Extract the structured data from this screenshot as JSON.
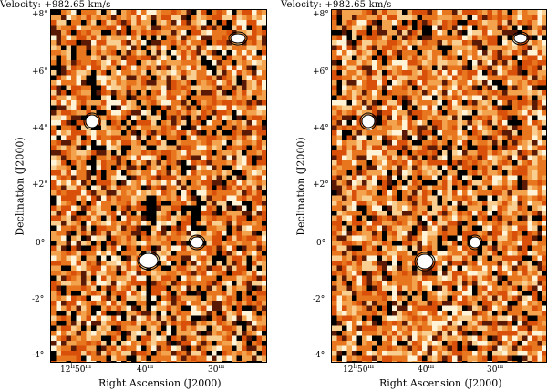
{
  "panels": [
    {
      "velocity_label": "Velocity: +982.65 km/s",
      "ylabel": "Declination (J2000)",
      "xlabel": "Right Ascension (J2000)",
      "dec_ticks": [
        "+8°",
        "+6°",
        "+4°",
        "+2°",
        "0°",
        "-2°",
        "-4°"
      ],
      "ra_ticks": [
        {
          "main": "12",
          "sup1": "h",
          "mid": "50",
          "sup2": "m"
        },
        {
          "main": "",
          "sup1": "",
          "mid": "40",
          "sup2": "m"
        },
        {
          "main": "",
          "sup1": "",
          "mid": "30",
          "sup2": "m"
        }
      ]
    },
    {
      "velocity_label": "Velocity: +982.65 km/s",
      "ylabel": "Declination (J2000)",
      "xlabel": "Right Ascension (J2000)",
      "dec_ticks": [
        "+8°",
        "+6°",
        "+4°",
        "+2°",
        "0°",
        "-2°",
        "-4°"
      ],
      "ra_ticks": [
        {
          "main": "12",
          "sup1": "h",
          "mid": "50",
          "sup2": "m"
        },
        {
          "main": "",
          "sup1": "",
          "mid": "40",
          "sup2": "m"
        },
        {
          "main": "",
          "sup1": "",
          "mid": "30",
          "sup2": "m"
        }
      ]
    }
  ],
  "colors": {
    "map_low": "#000000",
    "map_mid": "#d9500a",
    "map_base": "#e8761e",
    "map_high": "#fff4d8",
    "contour": "#ffffff"
  }
}
